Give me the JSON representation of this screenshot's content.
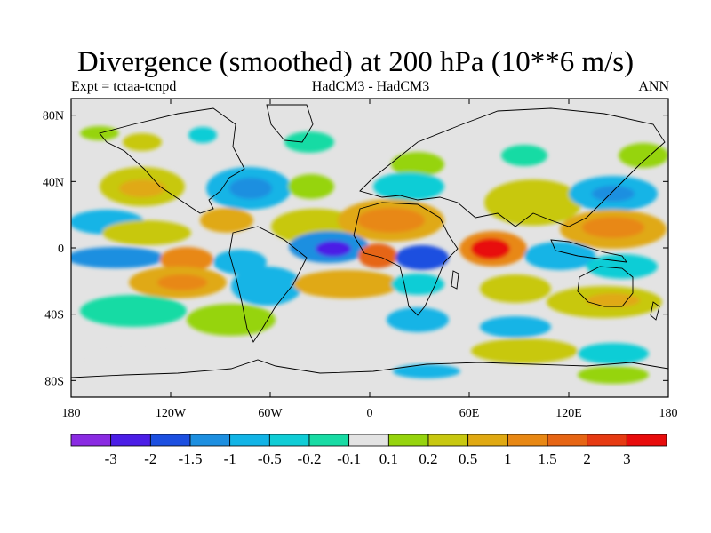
{
  "title": "Divergence (smoothed) at 200 hPa (10**6 m/s)",
  "subtitle_left": "Expt = tctaa-tcnpd",
  "subtitle_center": "HadCM3 - HadCM3",
  "subtitle_right": "ANN",
  "chart_data": {
    "type": "heatmap",
    "projection": "cylindrical equidistant",
    "x_ticks": [
      "180",
      "120W",
      "60W",
      "0",
      "60E",
      "120E",
      "180"
    ],
    "y_ticks": [
      "80N",
      "40N",
      "0",
      "40S",
      "80S"
    ],
    "colorbar": {
      "labels": [
        "-3",
        "-2",
        "-1.5",
        "-1",
        "-0.5",
        "-0.2",
        "-0.1",
        "0.1",
        "0.2",
        "0.5",
        "1",
        "1.5",
        "2",
        "3"
      ],
      "colors": [
        "#8a2be2",
        "#4b1ee6",
        "#1c4fe0",
        "#1d8fe0",
        "#12b4e6",
        "#10cdd6",
        "#18dba4",
        "#e3e3e3",
        "#96d40e",
        "#c8c810",
        "#e0a912",
        "#e88814",
        "#e66514",
        "#e63a12",
        "#e80c0c"
      ]
    }
  }
}
